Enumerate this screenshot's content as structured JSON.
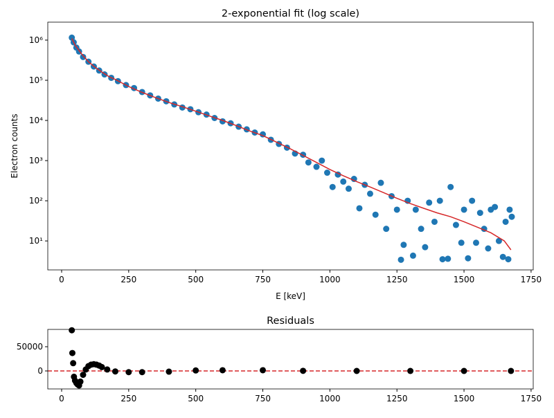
{
  "chart_data": [
    {
      "type": "scatter",
      "title": "2-exponential fit (log scale)",
      "xlabel": "E [keV]",
      "ylabel": "Electron counts",
      "log_y": true,
      "color": "#1f77b4",
      "x": [
        38,
        45,
        55,
        65,
        80,
        100,
        120,
        140,
        160,
        185,
        210,
        240,
        270,
        300,
        330,
        360,
        390,
        420,
        450,
        480,
        510,
        540,
        570,
        600,
        630,
        660,
        690,
        720,
        750,
        780,
        810,
        840,
        870,
        900,
        920,
        950,
        970,
        990,
        1010,
        1030,
        1050,
        1070,
        1090,
        1110,
        1130,
        1150,
        1170,
        1190,
        1210,
        1230,
        1250,
        1265,
        1275,
        1290,
        1310,
        1320,
        1340,
        1355,
        1370,
        1390,
        1410,
        1420,
        1440,
        1450,
        1470,
        1490,
        1500,
        1515,
        1530,
        1545,
        1560,
        1575,
        1590,
        1600,
        1615,
        1630,
        1645,
        1655,
        1665,
        1670,
        1678
      ],
      "values": [
        1150000,
        880000,
        650000,
        520000,
        380000,
        290000,
        220000,
        175000,
        140000,
        115000,
        95000,
        76000,
        64000,
        51000,
        42000,
        35000,
        30000,
        25000,
        21000,
        19000,
        16000,
        14000,
        11500,
        9500,
        8500,
        7000,
        6000,
        5000,
        4500,
        3300,
        2600,
        2100,
        1500,
        1400,
        900,
        700,
        1000,
        500,
        220,
        450,
        300,
        200,
        350,
        65,
        250,
        150,
        45,
        280,
        20,
        130,
        60,
        3.4,
        8,
        100,
        4.3,
        60,
        20,
        7,
        90,
        30,
        100,
        3.5,
        3.6,
        220,
        25,
        9,
        60,
        3.7,
        100,
        9,
        50,
        20,
        6.5,
        60,
        70,
        10,
        4,
        30,
        3.5,
        60,
        40
      ],
      "fit": {
        "color": "#d62728",
        "x": [
          38,
          50,
          75,
          100,
          125,
          150,
          175,
          200,
          250,
          300,
          350,
          400,
          450,
          500,
          550,
          600,
          650,
          700,
          750,
          800,
          850,
          900,
          950,
          1000,
          1050,
          1100,
          1150,
          1200,
          1250,
          1300,
          1350,
          1400,
          1450,
          1500,
          1550,
          1600,
          1650,
          1675
        ],
        "values": [
          1100000,
          750000,
          450000,
          290000,
          210000,
          160000,
          125000,
          105000,
          70000,
          50000,
          37000,
          28000,
          22000,
          17000,
          13000,
          10000,
          7500,
          5500,
          4200,
          2900,
          2000,
          1350,
          900,
          600,
          420,
          300,
          220,
          160,
          115,
          85,
          65,
          50,
          40,
          30,
          22,
          16,
          10,
          6
        ]
      },
      "xlim": [
        -51.6,
        1758
      ],
      "xticks": [
        0,
        250,
        500,
        750,
        1000,
        1250,
        1500,
        1750
      ],
      "ylim": [
        1.9,
        2800000
      ],
      "yticks": [
        {
          "value": 10,
          "label": "10¹"
        },
        {
          "value": 100,
          "label": "10²"
        },
        {
          "value": 1000,
          "label": "10³"
        },
        {
          "value": 10000,
          "label": "10⁴"
        },
        {
          "value": 100000,
          "label": "10⁵"
        },
        {
          "value": 1000000,
          "label": "10⁶"
        }
      ]
    },
    {
      "type": "scatter",
      "title": "Residuals",
      "color": "#000000",
      "x": [
        38,
        40,
        43,
        46,
        50,
        55,
        60,
        65,
        70,
        80,
        90,
        100,
        110,
        120,
        130,
        140,
        150,
        170,
        200,
        250,
        300,
        400,
        500,
        600,
        750,
        900,
        1100,
        1300,
        1500,
        1675
      ],
      "values": [
        84000,
        37000,
        16000,
        -12000,
        -20000,
        -25000,
        -28000,
        -30000,
        -22000,
        -8000,
        3000,
        10000,
        13000,
        14000,
        13000,
        11000,
        8000,
        3000,
        -1000,
        -2500,
        -2500,
        -1500,
        1000,
        1500,
        1500,
        200,
        0,
        0,
        0,
        0
      ],
      "reference_line": {
        "y": 0,
        "color": "#d62728"
      },
      "xlim": [
        -51.6,
        1758
      ],
      "xticks": [
        0,
        250,
        500,
        750,
        1000,
        1250,
        1500,
        1750
      ],
      "ylim": [
        -37143,
        85714
      ],
      "yticks": [
        0,
        50000
      ]
    }
  ]
}
